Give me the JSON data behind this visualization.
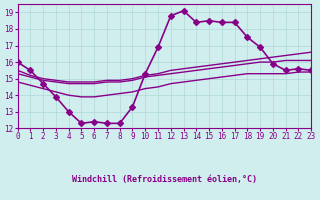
{
  "xlabel": "Windchill (Refroidissement éolien,°C)",
  "bg_color": "#d0eeee",
  "grid_color": "#b0d8d8",
  "line_color": "#880088",
  "xlim": [
    0,
    23
  ],
  "ylim": [
    12,
    19.5
  ],
  "yticks": [
    12,
    13,
    14,
    15,
    16,
    17,
    18,
    19
  ],
  "xticks": [
    0,
    1,
    2,
    3,
    4,
    5,
    6,
    7,
    8,
    9,
    10,
    11,
    12,
    13,
    14,
    15,
    16,
    17,
    18,
    19,
    20,
    21,
    22,
    23
  ],
  "series": [
    {
      "x": [
        0,
        1,
        2,
        3,
        4,
        5,
        6,
        7,
        8,
        9,
        10,
        11,
        12,
        13,
        14,
        15,
        16,
        17,
        18,
        19,
        20,
        21,
        22,
        23
      ],
      "y": [
        16.0,
        15.5,
        14.7,
        13.9,
        13.0,
        12.3,
        12.4,
        12.3,
        12.3,
        13.3,
        15.3,
        16.9,
        18.8,
        19.1,
        18.4,
        18.5,
        18.4,
        18.4,
        17.5,
        16.9,
        15.9,
        15.5,
        15.6,
        15.5
      ],
      "marker": "D",
      "markersize": 3,
      "linewidth": 1.2
    },
    {
      "x": [
        0,
        1,
        2,
        3,
        4,
        5,
        6,
        7,
        8,
        9,
        10,
        11,
        12,
        13,
        14,
        15,
        16,
        17,
        18,
        19,
        20,
        21,
        22,
        23
      ],
      "y": [
        15.5,
        15.2,
        15.0,
        14.9,
        14.8,
        14.8,
        14.8,
        14.9,
        14.9,
        15.0,
        15.2,
        15.3,
        15.5,
        15.6,
        15.7,
        15.8,
        15.9,
        16.0,
        16.1,
        16.2,
        16.3,
        16.4,
        16.5,
        16.6
      ],
      "marker": null,
      "markersize": 0,
      "linewidth": 1.0
    },
    {
      "x": [
        0,
        1,
        2,
        3,
        4,
        5,
        6,
        7,
        8,
        9,
        10,
        11,
        12,
        13,
        14,
        15,
        16,
        17,
        18,
        19,
        20,
        21,
        22,
        23
      ],
      "y": [
        15.3,
        15.1,
        14.9,
        14.8,
        14.7,
        14.7,
        14.7,
        14.8,
        14.8,
        14.9,
        15.1,
        15.2,
        15.3,
        15.4,
        15.5,
        15.6,
        15.7,
        15.8,
        15.9,
        16.0,
        16.0,
        16.1,
        16.1,
        16.1
      ],
      "marker": null,
      "markersize": 0,
      "linewidth": 1.0
    },
    {
      "x": [
        0,
        1,
        2,
        3,
        4,
        5,
        6,
        7,
        8,
        9,
        10,
        11,
        12,
        13,
        14,
        15,
        16,
        17,
        18,
        19,
        20,
        21,
        22,
        23
      ],
      "y": [
        14.8,
        14.6,
        14.4,
        14.2,
        14.0,
        13.9,
        13.9,
        14.0,
        14.1,
        14.2,
        14.4,
        14.5,
        14.7,
        14.8,
        14.9,
        15.0,
        15.1,
        15.2,
        15.3,
        15.3,
        15.3,
        15.3,
        15.4,
        15.4
      ],
      "marker": null,
      "markersize": 0,
      "linewidth": 1.0
    }
  ]
}
